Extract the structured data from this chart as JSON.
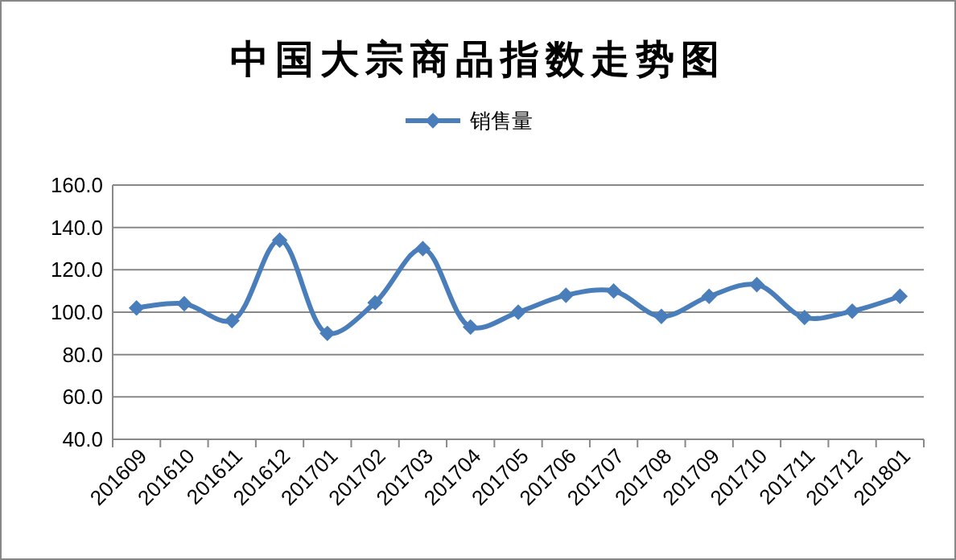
{
  "chart_data": {
    "type": "line",
    "title": "中国大宗商品指数走势图",
    "categories": [
      "201609",
      "201610",
      "201611",
      "201612",
      "201701",
      "201702",
      "201703",
      "201704",
      "201705",
      "201706",
      "201707",
      "201708",
      "201709",
      "201710",
      "201711",
      "201712",
      "201801"
    ],
    "series": [
      {
        "name": "销售量",
        "color": "#4a7ebb",
        "values": [
          102,
          104,
          96,
          134,
          90,
          104.5,
          130,
          93,
          100,
          108,
          110,
          98,
          107.5,
          113,
          97.5,
          100.5,
          107.5
        ]
      }
    ],
    "ylim": [
      40,
      160
    ],
    "yticks": [
      {
        "value": 40,
        "label": "40.0"
      },
      {
        "value": 60,
        "label": "60.0"
      },
      {
        "value": 80,
        "label": "80.0"
      },
      {
        "value": 100,
        "label": "100.0"
      },
      {
        "value": 120,
        "label": "120.0"
      },
      {
        "value": 140,
        "label": "140.0"
      },
      {
        "value": 160,
        "label": "160.0"
      }
    ],
    "grid": "y",
    "legend": "top",
    "marker": "diamond",
    "line_style": "solid"
  }
}
